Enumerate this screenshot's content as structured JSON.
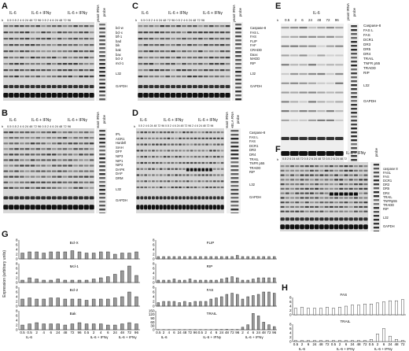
{
  "panels": {
    "A": {
      "letter": "A",
      "conditions": [
        "IL-6",
        "IL-6 + IFNγ",
        "IL-6 + IFNγ"
      ],
      "h_label": "h",
      "time_label": "0.5 0.5 2 4 6 24 48 72 96 0.5 2 4 6 24 48 72 96",
      "probe_labels": [
        "yeast tRNA",
        "probe"
      ],
      "bands": [
        "bcl-w",
        "bcl-x",
        "bfl-1",
        "bad",
        "bik",
        "bak",
        "bax",
        "bcl-2",
        "mcl-1",
        "L32",
        "GAPDH"
      ]
    },
    "B": {
      "letter": "B",
      "conditions": [
        "IL-6",
        "IL-6 + IFNγ",
        "IL-6 + IFNγ"
      ],
      "h_label": "h",
      "time_label": "0.5 0.5 2 4 6 24 48 72 96 0.5 2 4 6 24 48 72 96",
      "probe_labels": [
        "yeast tRNA",
        "probe"
      ],
      "bands": [
        "IPL",
        "AGR1",
        "Hardell",
        "SIAH",
        "DFF",
        "NIP3",
        "NIP1",
        "NIP2",
        "DAPK",
        "DAP",
        "DRM",
        "L32",
        "GAPDH"
      ]
    },
    "C": {
      "letter": "C",
      "conditions": [
        "IL-6",
        "IL-6 + IFNγ",
        "IL-6 + IFNγ"
      ],
      "h_label": "h",
      "time_label": "0.5 0.5 2 4 6 24 48 72 96 0.5 2 4 6 24 48 72 96",
      "probe_labels": [
        "yeast tRNA",
        "probe"
      ],
      "bands": [
        "Caspase-8",
        "FAS L",
        "FAS",
        "FLIP",
        "FAF",
        "CRADD",
        "Daxx",
        "MADD",
        "RIP",
        "L32",
        "GAPDH"
      ]
    },
    "D": {
      "letter": "D",
      "conditions": [
        "IL-6",
        "IL-6 + IFNγ",
        "IL-6 + IFNγ"
      ],
      "h_label": "h",
      "time_label": "0.5 2 4 6 24 48 72 96 0.5 2 4 6 24 48 72 96 2 4 6 24 48 72 96",
      "probe_labels": [
        "yeast tRNA",
        "HELA RNA",
        "probe"
      ],
      "bands": [
        "Caspase-8",
        "FAS L",
        "FAS",
        "DCR1",
        "DR3",
        "DR4",
        "TRAIL",
        "TNFR p55",
        "TRADD",
        "RIP",
        "L32",
        "GAPDH"
      ]
    },
    "E": {
      "letter": "E",
      "conditions": [
        "IL-6"
      ],
      "h_label": "h",
      "time_label": "0.5 2 6 24 48 72 96",
      "probe_labels": [
        "yeast tRNA",
        "probe"
      ],
      "bands": [
        "Caspase-8",
        "FAS L",
        "FAS",
        "DCR1",
        "DR3",
        "DR5",
        "DR4",
        "TRAIL",
        "TNFR p55",
        "TRADD",
        "RIP",
        "L32",
        "GAPDH"
      ]
    },
    "F": {
      "letter": "F",
      "conditions": [
        "IL-6",
        "IL-6 + IFNγ",
        "IL-6 + IFNγ"
      ],
      "h_label": "h",
      "time_label": "0.5 2 6 24 48 72 0.5 2 6 24 48 72 0.5 2 6 24 48 72",
      "probe_labels": [
        "probe"
      ],
      "bands": [
        "caspase 8",
        "FASL",
        "FAS",
        "DCR1",
        "DR3",
        "DR5",
        "DR4",
        "TRAIL",
        "TNFRp55",
        "TRADD",
        "RIP",
        "L32",
        "GAPDH"
      ]
    }
  },
  "chart_data": [
    {
      "type": "bar",
      "panel": "G",
      "letter": "G",
      "ylabel": "Expression (arbitrary units)",
      "categories": [
        "0.5",
        "0.5",
        "2",
        "4",
        "6",
        "24",
        "48",
        "72",
        "96",
        "0.5",
        "2",
        "4",
        "6",
        "24",
        "48",
        "72",
        "96"
      ],
      "group_labels": [
        "IL-6",
        "IL-6 + IFNγ",
        "IL-6 + IFNγ"
      ],
      "column": "left",
      "charts": [
        {
          "name": "Bcl-X",
          "ymax": 8,
          "ticks": [
            "8",
            "6",
            "4",
            "2",
            "0"
          ],
          "values": [
            2.5,
            3,
            3,
            2.5,
            3,
            3,
            3,
            3.5,
            3,
            2.5,
            2.5,
            3,
            3,
            2,
            2.5,
            2.5,
            3
          ]
        },
        {
          "name": "Mcl-1",
          "ymax": 8,
          "ticks": [
            "8",
            "6",
            "4",
            "2",
            "0"
          ],
          "values": [
            1,
            2,
            1.5,
            1,
            1,
            1.5,
            1,
            1,
            1,
            1,
            1.5,
            2,
            2.5,
            3.5,
            5,
            7,
            3
          ]
        },
        {
          "name": "Bcl-2",
          "ymax": 8,
          "ticks": [
            "8",
            "6",
            "4",
            "2",
            "0"
          ],
          "values": [
            3,
            3.5,
            3,
            3,
            3.5,
            3.5,
            3,
            3,
            3,
            2.5,
            3,
            3,
            3,
            3.5,
            4,
            6,
            4
          ]
        },
        {
          "name": "Bak",
          "ymax": 8,
          "ticks": [
            "8",
            "6",
            "4",
            "2",
            "0"
          ],
          "values": [
            2,
            2.5,
            3,
            2.5,
            2.5,
            2.5,
            2,
            2.5,
            3,
            2.5,
            2.5,
            2.5,
            2,
            2,
            2.5,
            3,
            2.5
          ]
        }
      ]
    },
    {
      "type": "bar",
      "panel": "G",
      "letter": "",
      "column": "right",
      "categories": [
        "0.5",
        "2",
        "4",
        "6",
        "24",
        "48",
        "72",
        "96",
        "0.5",
        "2",
        "4",
        "6",
        "24",
        "48",
        "72",
        "96",
        "2",
        "4",
        "6",
        "24",
        "48",
        "72",
        "96"
      ],
      "group_labels": [
        "IL-6",
        "IL-6 + IFNγ",
        "IL-6 + IFNγ"
      ],
      "charts": [
        {
          "name": "FLIP",
          "ymax": 8,
          "ticks": [
            "8",
            "6",
            "4",
            "2",
            "0"
          ],
          "values": [
            1,
            1,
            1,
            1,
            1,
            1,
            1,
            1,
            1,
            1,
            1,
            1,
            1,
            1,
            1,
            1.5,
            1,
            1,
            1,
            1,
            1,
            1,
            1
          ]
        },
        {
          "name": "RIP",
          "ymax": 8,
          "ticks": [
            "8",
            "6",
            "4",
            "2",
            "0"
          ],
          "values": [
            1,
            1,
            1,
            1.5,
            1,
            1,
            1.5,
            1,
            1,
            1,
            1,
            1,
            1.5,
            2,
            2.5,
            2,
            1,
            1,
            1.5,
            2,
            2,
            2,
            2
          ]
        },
        {
          "name": "FAS",
          "ymax": 8,
          "ticks": [
            "8",
            "6",
            "4",
            "2",
            "0"
          ],
          "values": [
            1.5,
            2,
            2,
            2,
            1.5,
            2,
            1.5,
            2,
            2,
            2,
            3,
            3.5,
            4,
            5,
            5.5,
            5,
            3,
            4,
            4.5,
            5,
            6,
            6,
            5.5
          ]
        },
        {
          "name": "TRAIL",
          "ymax": 150,
          "ticks": [
            "150",
            "120",
            "90",
            "60",
            "30",
            "0"
          ],
          "values": [
            1,
            1,
            1,
            1,
            1,
            1,
            1,
            1,
            1,
            1,
            1,
            2,
            2,
            3,
            2,
            2,
            20,
            40,
            130,
            110,
            60,
            40,
            25
          ]
        }
      ]
    },
    {
      "type": "bar",
      "panel": "H",
      "letter": "H",
      "categories": [
        "0.5",
        "2",
        "6",
        "24",
        "48",
        "72",
        "0.5",
        "2",
        "6",
        "24",
        "48",
        "72",
        "0.5",
        "2",
        "6",
        "24",
        "48",
        "72"
      ],
      "group_labels": [
        "IL-6",
        "IL-6 + IFNγ",
        "IL-6 + IFNγ"
      ],
      "charts": [
        {
          "name": "FAS",
          "ymax": 8,
          "ticks": [
            "8",
            "6",
            "4",
            "2",
            "0"
          ],
          "values": [
            3,
            3.5,
            3,
            3,
            3,
            3.5,
            3,
            3.5,
            4,
            4.5,
            4.5,
            5,
            5,
            5.5,
            6,
            6.5,
            6.5,
            7
          ]
        },
        {
          "name": "TRAIL",
          "ymax": 8,
          "ticks": [
            "8",
            "6",
            "4",
            "2",
            "0"
          ],
          "values": [
            0.5,
            0.5,
            0.5,
            0.5,
            0.5,
            0.5,
            0.5,
            0.5,
            0.5,
            0.5,
            0.5,
            0.5,
            1,
            3.5,
            6,
            2.5,
            1,
            0.5
          ]
        }
      ]
    }
  ]
}
